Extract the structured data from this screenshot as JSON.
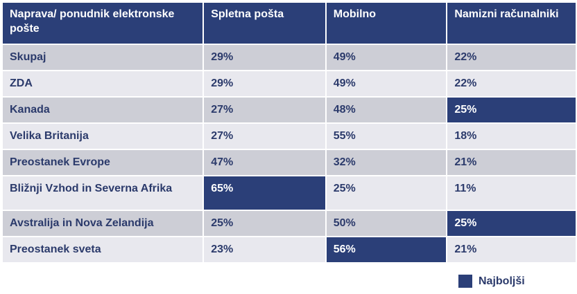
{
  "chart_data": {
    "type": "table",
    "columns": [
      "Naprava/ ponudnik elektronske pošte",
      "Spletna pošta",
      "Mobilno",
      "Namizni računalniki"
    ],
    "rows": [
      {
        "region": "Skupaj",
        "values": [
          "29%",
          "49%",
          "22%"
        ],
        "best": []
      },
      {
        "region": "ZDA",
        "values": [
          "29%",
          "49%",
          "22%"
        ],
        "best": []
      },
      {
        "region": "Kanada",
        "values": [
          "27%",
          "48%",
          "25%"
        ],
        "best": [
          2
        ]
      },
      {
        "region": "Velika Britanija",
        "values": [
          "27%",
          "55%",
          "18%"
        ],
        "best": []
      },
      {
        "region": "Preostanek Evrope",
        "values": [
          "47%",
          "32%",
          "21%"
        ],
        "best": []
      },
      {
        "region": "Bližnji Vzhod in Severna Afrika",
        "values": [
          "65%",
          "25%",
          "11%"
        ],
        "best": [
          0
        ]
      },
      {
        "region": "Avstralija in Nova Zelandija",
        "values": [
          "25%",
          "50%",
          "25%"
        ],
        "best": [
          2
        ]
      },
      {
        "region": "Preostanek sveta",
        "values": [
          "23%",
          "56%",
          "21%"
        ],
        "best": [
          1
        ]
      }
    ],
    "legend": {
      "label": "Najboljši",
      "color": "#2b3f78"
    }
  },
  "colors": {
    "header_bg": "#2b3f78",
    "best_bg": "#2b3f78",
    "row_odd_bg": "#cdced6",
    "row_even_bg": "#e8e8ee",
    "text": "#2b3a6b"
  }
}
